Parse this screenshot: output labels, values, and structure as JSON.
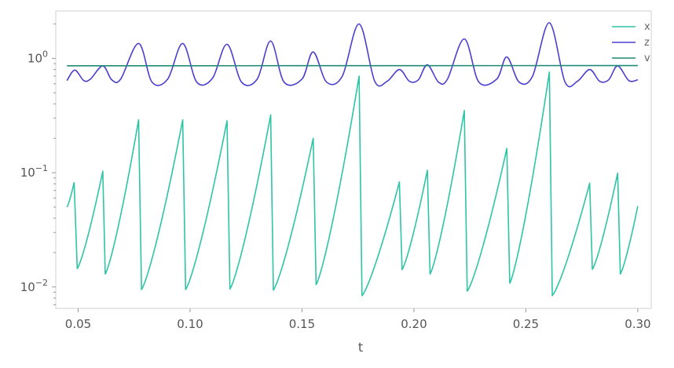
{
  "chart_data": {
    "type": "line",
    "title": "",
    "xlabel": "t",
    "ylabel": "",
    "yscale": "log",
    "xlim": [
      0.04,
      0.306
    ],
    "ylim": [
      0.0065,
      2.6
    ],
    "grid": false,
    "legend_position": "top-right",
    "x_ticks": [
      0.05,
      0.1,
      0.15,
      0.2,
      0.25,
      0.3
    ],
    "x_tick_labels": [
      "0.05",
      "0.10",
      "0.15",
      "0.20",
      "0.25",
      "0.30"
    ],
    "y_ticks": [
      0.01,
      0.1,
      1
    ],
    "y_tick_labels": [
      {
        "base": "10",
        "exp": "−2"
      },
      {
        "base": "10",
        "exp": "−1"
      },
      {
        "base": "10",
        "exp": "0"
      }
    ],
    "series": [
      {
        "name": "x",
        "color": "#2ec4a6",
        "peaks": [
          {
            "t": 0.0482,
            "v": 0.082
          },
          {
            "t": 0.061,
            "v": 0.103
          },
          {
            "t": 0.077,
            "v": 0.29
          },
          {
            "t": 0.0967,
            "v": 0.29
          },
          {
            "t": 0.1165,
            "v": 0.285
          },
          {
            "t": 0.136,
            "v": 0.32
          },
          {
            "t": 0.155,
            "v": 0.2
          },
          {
            "t": 0.1755,
            "v": 0.7
          },
          {
            "t": 0.1935,
            "v": 0.083
          },
          {
            "t": 0.206,
            "v": 0.105
          },
          {
            "t": 0.2225,
            "v": 0.35
          },
          {
            "t": 0.2415,
            "v": 0.163
          },
          {
            "t": 0.2605,
            "v": 0.76
          },
          {
            "t": 0.2785,
            "v": 0.081
          },
          {
            "t": 0.291,
            "v": 0.099
          }
        ],
        "troughs": [
          {
            "t": 0.045,
            "v": 0.05
          },
          {
            "t": 0.0496,
            "v": 0.0145
          },
          {
            "t": 0.0621,
            "v": 0.013
          },
          {
            "t": 0.0783,
            "v": 0.0095
          },
          {
            "t": 0.098,
            "v": 0.0095
          },
          {
            "t": 0.1178,
            "v": 0.0096
          },
          {
            "t": 0.1372,
            "v": 0.0094
          },
          {
            "t": 0.1563,
            "v": 0.0105
          },
          {
            "t": 0.1768,
            "v": 0.0084
          },
          {
            "t": 0.1947,
            "v": 0.0142
          },
          {
            "t": 0.2072,
            "v": 0.013
          },
          {
            "t": 0.2238,
            "v": 0.0092
          },
          {
            "t": 0.2428,
            "v": 0.0108
          },
          {
            "t": 0.2618,
            "v": 0.0084
          },
          {
            "t": 0.2797,
            "v": 0.0143
          },
          {
            "t": 0.2922,
            "v": 0.013
          },
          {
            "t": 0.3,
            "v": 0.051
          }
        ]
      },
      {
        "name": "z",
        "color": "#4a3fcf",
        "points": [
          [
            0.045,
            0.64
          ],
          [
            0.0485,
            0.79
          ],
          [
            0.0525,
            0.64
          ],
          [
            0.0555,
            0.66
          ],
          [
            0.061,
            0.86
          ],
          [
            0.065,
            0.65
          ],
          [
            0.069,
            0.66
          ],
          [
            0.077,
            1.35
          ],
          [
            0.083,
            0.62
          ],
          [
            0.09,
            0.66
          ],
          [
            0.0967,
            1.35
          ],
          [
            0.103,
            0.62
          ],
          [
            0.11,
            0.67
          ],
          [
            0.1165,
            1.33
          ],
          [
            0.123,
            0.62
          ],
          [
            0.13,
            0.66
          ],
          [
            0.136,
            1.42
          ],
          [
            0.142,
            0.62
          ],
          [
            0.15,
            0.66
          ],
          [
            0.155,
            1.14
          ],
          [
            0.161,
            0.62
          ],
          [
            0.168,
            0.7
          ],
          [
            0.1755,
            2.0
          ],
          [
            0.1825,
            0.63
          ],
          [
            0.188,
            0.63
          ],
          [
            0.1935,
            0.8
          ],
          [
            0.198,
            0.63
          ],
          [
            0.202,
            0.65
          ],
          [
            0.206,
            0.88
          ],
          [
            0.211,
            0.62
          ],
          [
            0.215,
            0.66
          ],
          [
            0.2225,
            1.48
          ],
          [
            0.229,
            0.62
          ],
          [
            0.237,
            0.66
          ],
          [
            0.2415,
            1.03
          ],
          [
            0.247,
            0.62
          ],
          [
            0.253,
            0.7
          ],
          [
            0.2605,
            2.05
          ],
          [
            0.2675,
            0.62
          ],
          [
            0.273,
            0.63
          ],
          [
            0.2785,
            0.8
          ],
          [
            0.283,
            0.63
          ],
          [
            0.287,
            0.65
          ],
          [
            0.291,
            0.86
          ],
          [
            0.296,
            0.64
          ],
          [
            0.3,
            0.65
          ]
        ]
      },
      {
        "name": "v",
        "color": "#1f8a78",
        "points": [
          [
            0.045,
            0.862
          ],
          [
            0.12,
            0.863
          ],
          [
            0.2,
            0.864
          ],
          [
            0.3,
            0.866
          ]
        ]
      }
    ]
  }
}
